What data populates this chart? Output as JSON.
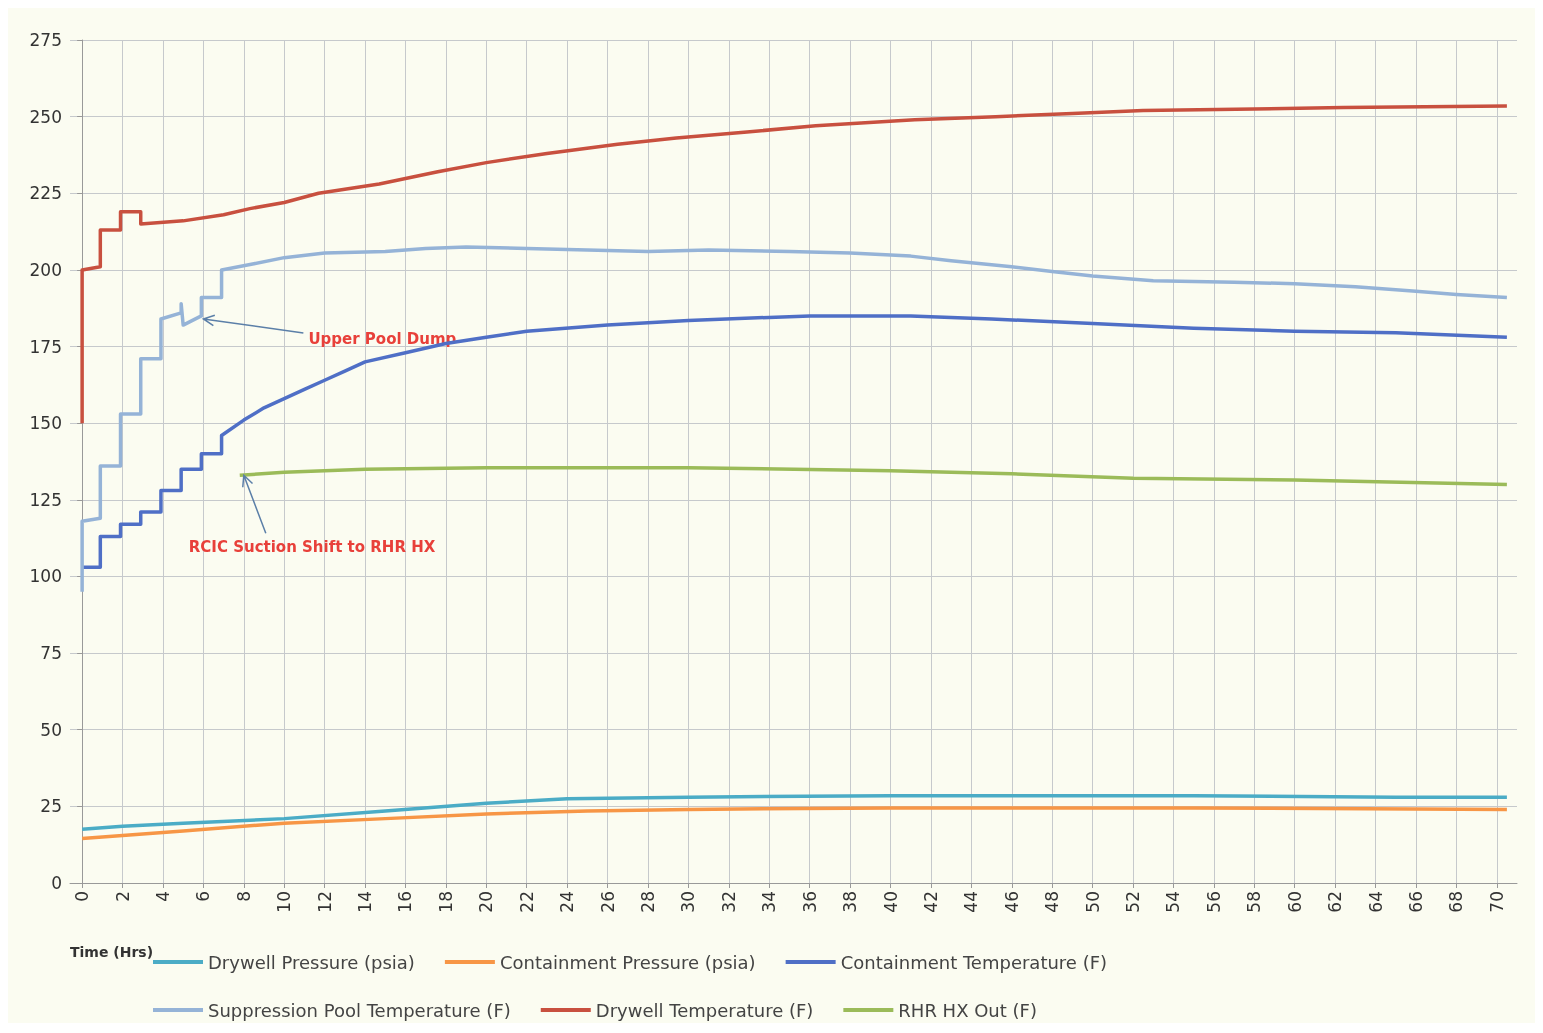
{
  "chart_data": {
    "type": "line",
    "xlabel": "Time (Hrs)",
    "xlim": [
      -0.6,
      71
    ],
    "xticks": [
      0,
      2,
      4,
      6,
      8,
      10,
      12,
      14,
      16,
      18,
      20,
      22,
      24,
      26,
      28,
      30,
      32,
      34,
      36,
      38,
      40,
      42,
      44,
      46,
      48,
      50,
      52,
      54,
      56,
      58,
      60,
      62,
      64,
      66,
      68,
      70
    ],
    "ylim": [
      0,
      275
    ],
    "yticks": [
      0,
      25,
      50,
      75,
      100,
      125,
      150,
      175,
      200,
      225,
      250,
      275
    ],
    "grid": true,
    "legend": "bottom",
    "marker": "none",
    "line_style": "solid",
    "series": [
      {
        "name": "Drywell Pressure (psia)",
        "color": "#4bacc6",
        "x": [
          0,
          2,
          5,
          10,
          15,
          20,
          24,
          30,
          40,
          55,
          65,
          70.5
        ],
        "values": [
          17.5,
          18.5,
          19.5,
          21,
          23.5,
          26,
          27.5,
          28,
          28.5,
          28.5,
          28,
          28
        ]
      },
      {
        "name": "Containment Pressure (psia)",
        "color": "#f79646",
        "x": [
          0,
          5,
          10,
          15,
          20,
          25,
          30,
          40,
          55,
          70.5
        ],
        "values": [
          14.5,
          17,
          19.5,
          21,
          22.5,
          23.5,
          24,
          24.5,
          24.5,
          24
        ]
      },
      {
        "name": "Containment Temperature (F)",
        "color": "#4f6fc6",
        "x": [
          0,
          0.9,
          0.9,
          1.9,
          1.9,
          2.9,
          2.9,
          3.9,
          3.9,
          4.9,
          4.9,
          5.9,
          5.9,
          6.9,
          6.9,
          8,
          9,
          10,
          11,
          12,
          13,
          14,
          16,
          18,
          20,
          22,
          26,
          30,
          36,
          41,
          45,
          50,
          55,
          60,
          65,
          70.5
        ],
        "values": [
          103,
          103,
          113,
          113,
          117,
          117,
          121,
          121,
          128,
          128,
          135,
          135,
          140,
          140,
          146,
          151,
          155,
          158,
          161,
          164,
          167,
          170,
          173,
          176,
          178,
          180,
          182,
          183.5,
          185,
          185,
          184,
          182.5,
          181,
          180,
          179.5,
          178
        ]
      },
      {
        "name": "Suppression Pool Temperature (F)",
        "color": "#95b3d7",
        "x": [
          0,
          0,
          0.9,
          0.9,
          1.9,
          1.9,
          2.9,
          2.9,
          3.9,
          3.9,
          4.9,
          4.9,
          5,
          5.9,
          5.9,
          6.9,
          6.9,
          8.5,
          10,
          12,
          15,
          17,
          19,
          22,
          25,
          28,
          31,
          35,
          38,
          41,
          43,
          46,
          48,
          50,
          53,
          57,
          60,
          63,
          66,
          68,
          70.5
        ],
        "values": [
          95,
          118,
          119,
          136,
          136,
          153,
          153,
          171,
          171,
          184,
          186,
          189,
          182,
          185,
          191,
          191,
          200,
          202,
          204,
          205.5,
          206,
          207,
          207.5,
          207,
          206.5,
          206,
          206.5,
          206,
          205.5,
          204.5,
          203,
          201,
          199.5,
          198,
          196.5,
          196,
          195.5,
          194.5,
          193,
          192,
          191
        ]
      },
      {
        "name": "Drywell Temperature (F)",
        "color": "#c8503f",
        "x": [
          0,
          0,
          0.9,
          0.9,
          1.9,
          1.9,
          2.9,
          2.9,
          5,
          7,
          8.3,
          10,
          11.7,
          14.7,
          17.6,
          20,
          23,
          26.5,
          29.4,
          32.9,
          36.3,
          41.2,
          45.2,
          49,
          52.5,
          58,
          62.4,
          70.5
        ],
        "values": [
          150,
          200,
          201,
          213,
          213,
          219,
          219,
          215,
          216,
          218,
          220,
          222,
          225,
          228,
          232,
          235,
          238,
          241,
          243,
          245,
          247,
          249,
          250,
          251,
          252,
          252.5,
          253,
          253.5
        ]
      },
      {
        "name": "RHR HX Out (F)",
        "color": "#9bbb59",
        "x": [
          7.8,
          10,
          14,
          20,
          30,
          40,
          46,
          52,
          60,
          70.5
        ],
        "values": [
          133,
          134,
          135,
          135.5,
          135.5,
          134.5,
          133.5,
          132,
          131.5,
          130
        ]
      }
    ],
    "annotations": [
      {
        "text": "Upper Pool Dump",
        "x": 6,
        "y": 184
      },
      {
        "text": "RCIC Suction Shift to RHR HX",
        "x": 8,
        "y": 133
      }
    ]
  }
}
